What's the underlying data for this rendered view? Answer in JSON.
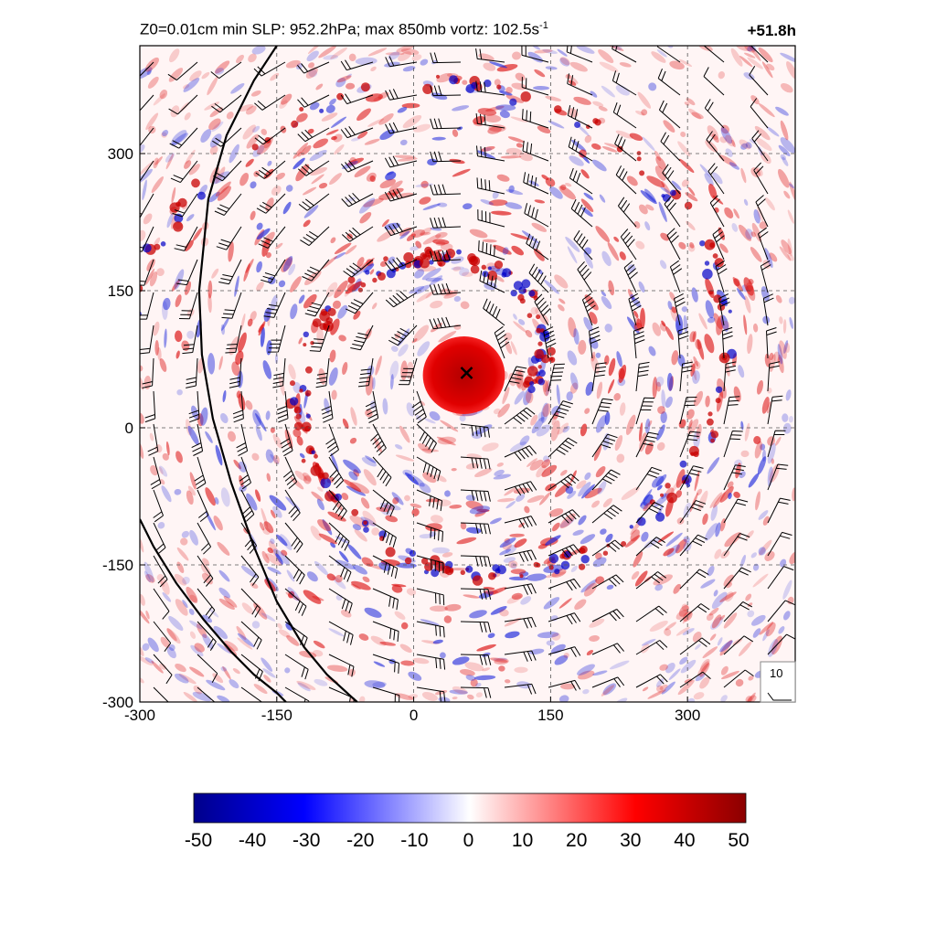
{
  "header": {
    "title_main": "Z0=0.01cm  min SLP: 952.2hPa; max 850mb vortz: 102.5s",
    "title_sup": "-1",
    "time_label": "+51.8h"
  },
  "chart_data": {
    "type": "heatmap",
    "title": "Z0=0.01cm  min SLP: 952.2hPa; max 850mb vortz: 102.5s-1",
    "xlabel": "",
    "ylabel": "",
    "xlim": [
      -300,
      418
    ],
    "ylim": [
      -300,
      418
    ],
    "x_ticks": [
      -300,
      -150,
      0,
      150,
      300
    ],
    "y_ticks": [
      -300,
      -150,
      0,
      150,
      300
    ],
    "grid": true,
    "field": "850mb relative vorticity (shaded), wind barbs overlay",
    "center_marker": {
      "x": 58,
      "y": 60,
      "symbol": "x"
    },
    "eyewall_core": {
      "x_range": [
        10,
        100
      ],
      "y_range": [
        15,
        100
      ],
      "value": 50
    },
    "colorbar": {
      "min": -50,
      "max": 50,
      "ticks": [
        -50,
        -40,
        -30,
        -20,
        -10,
        0,
        10,
        20,
        30,
        40,
        50
      ],
      "colormap": [
        "#00008b",
        "#0000ff",
        "#ffffff",
        "#ff0000",
        "#8b0000"
      ]
    },
    "barb_reference": {
      "label": "10"
    },
    "coastlines": [
      [
        [
          -150,
          418
        ],
        [
          -175,
          380
        ],
        [
          -205,
          320
        ],
        [
          -225,
          250
        ],
        [
          -235,
          150
        ],
        [
          -232,
          80
        ],
        [
          -220,
          10
        ],
        [
          -200,
          -60
        ],
        [
          -175,
          -130
        ],
        [
          -150,
          -190
        ],
        [
          -120,
          -240
        ],
        [
          -95,
          -270
        ],
        [
          -62,
          -300
        ]
      ],
      [
        [
          -300,
          -100
        ],
        [
          -285,
          -130
        ],
        [
          -260,
          -170
        ],
        [
          -230,
          -210
        ],
        [
          -200,
          -245
        ],
        [
          -175,
          -270
        ],
        [
          -150,
          -290
        ],
        [
          -140,
          -300
        ]
      ]
    ]
  }
}
